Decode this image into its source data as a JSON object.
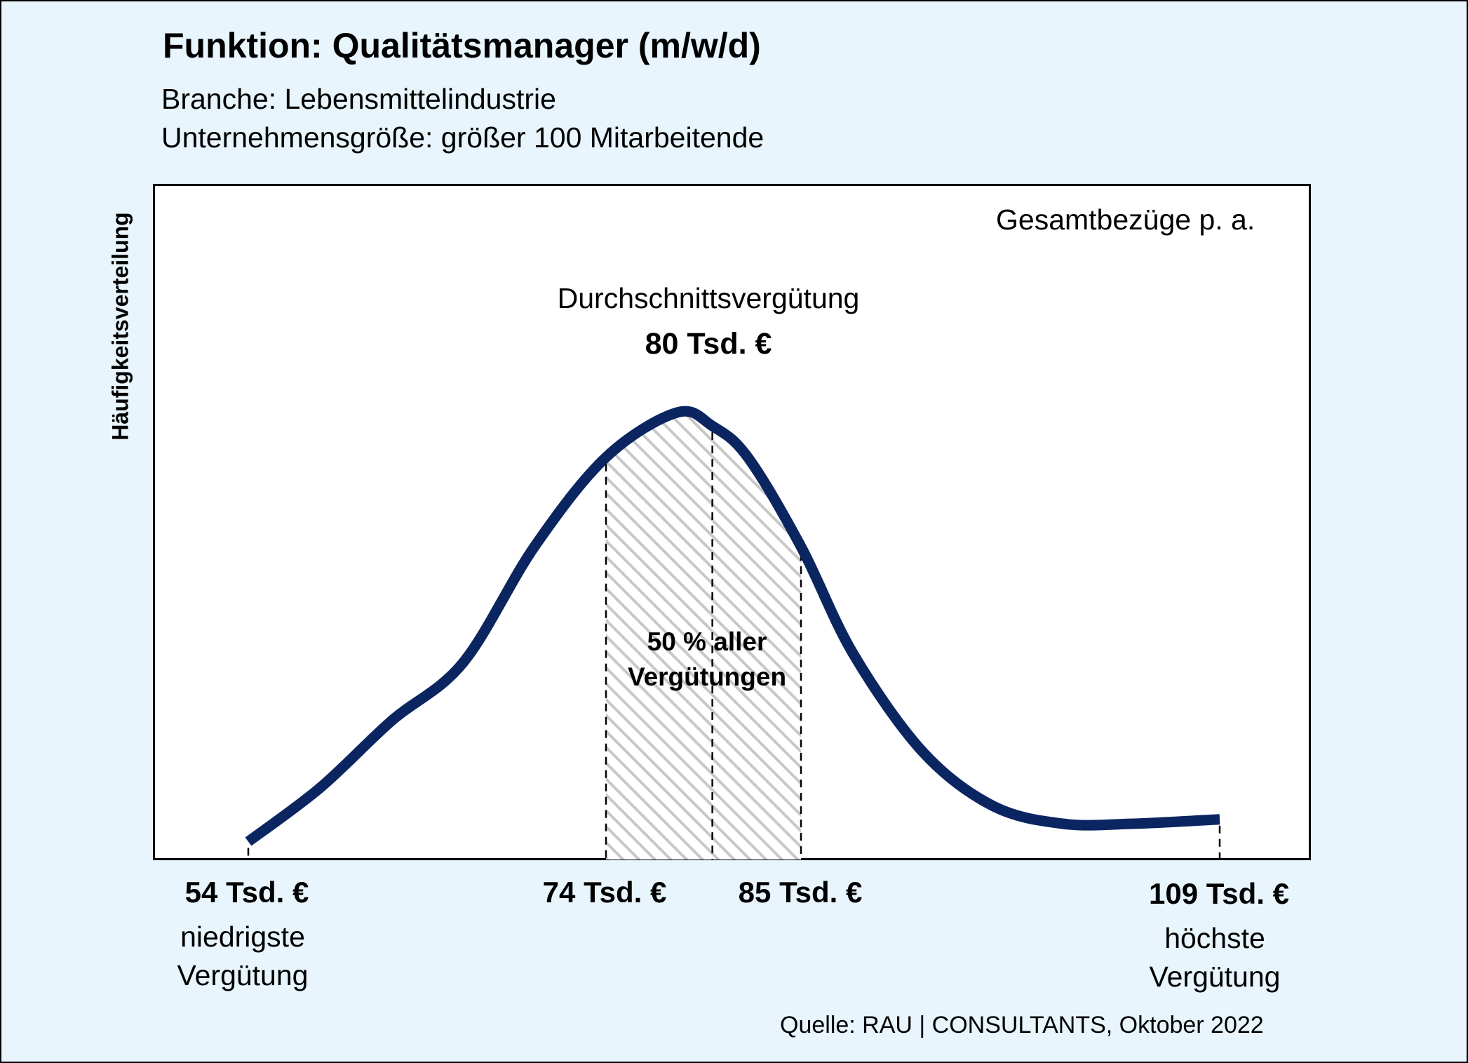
{
  "title": "Funktion: Qualitätsmanager (m/w/d)",
  "subtitle_line1": "Branche: Lebensmittelindustrie",
  "subtitle_line2": "Unternehmensgröße: größer 100 Mitarbeitende",
  "source": "Quelle: RAU | CONSULTANTS, Oktober 2022",
  "colors": {
    "background": "#e8f5fd",
    "curve": "#0b2561",
    "hatch": "#c8c8c8"
  },
  "chart_data": {
    "type": "area",
    "ylabel": "Häufigkeitsverteilung",
    "corner_label": "Gesamtbezüge p. a.",
    "average": {
      "label": "Durchschnittsvergütung",
      "value": 80,
      "value_label": "80 Tsd. €"
    },
    "min": {
      "value": 54,
      "value_label": "54 Tsd. €",
      "description": [
        "niedrigste",
        "Vergütung"
      ]
    },
    "q1": {
      "value": 74,
      "value_label": "74 Tsd. €"
    },
    "q3": {
      "value": 85,
      "value_label": "85 Tsd. €"
    },
    "max": {
      "value": 109,
      "value_label": "109 Tsd. €",
      "description": [
        "höchste",
        "Vergütung"
      ]
    },
    "interquartile_label": [
      "50 % aller",
      "Vergütungen"
    ],
    "shaded_range": [
      74,
      85
    ],
    "grid": false,
    "curve": {
      "x": [
        54,
        58,
        62,
        66,
        70,
        74,
        78,
        80,
        82,
        85,
        88,
        92,
        96,
        100,
        104,
        109
      ],
      "y": [
        0.04,
        0.16,
        0.31,
        0.44,
        0.7,
        0.9,
        1.0,
        0.97,
        0.9,
        0.7,
        0.46,
        0.24,
        0.12,
        0.08,
        0.08,
        0.09
      ]
    }
  }
}
